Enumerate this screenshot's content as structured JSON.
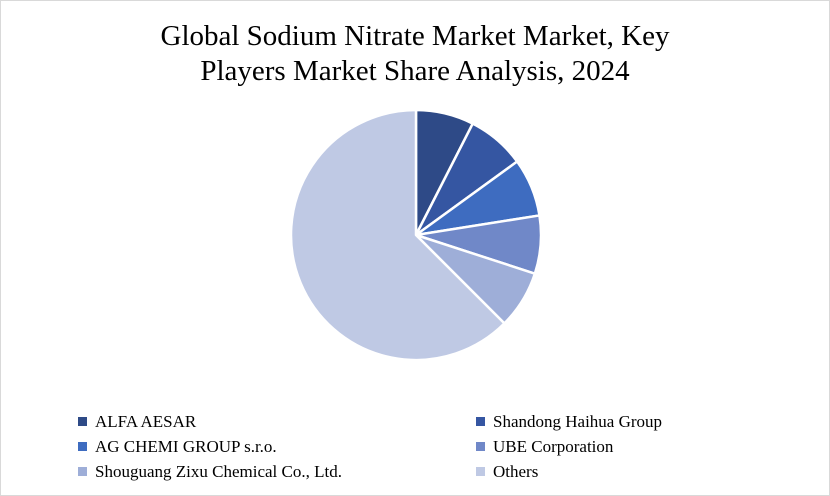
{
  "chart_data": {
    "type": "pie",
    "title_lines": [
      "Global Sodium Nitrate Market Market, Key",
      "Players Market Share Analysis, 2024"
    ],
    "categories": [
      "ALFA AESAR",
      "Shandong Haihua Group",
      "AG CHEMI GROUP s.r.o.",
      "UBE Corporation",
      "Shouguang Zixu Chemical Co., Ltd.",
      "Others"
    ],
    "values": [
      7.5,
      7.5,
      7.5,
      7.5,
      7.5,
      62.5
    ],
    "colors": [
      "#2e4a87",
      "#3556a2",
      "#3e6cc0",
      "#7088c8",
      "#9eaed8",
      "#bfc9e4"
    ],
    "legend_position": "bottom",
    "start_angle_deg": 0,
    "direction": "clockwise"
  }
}
